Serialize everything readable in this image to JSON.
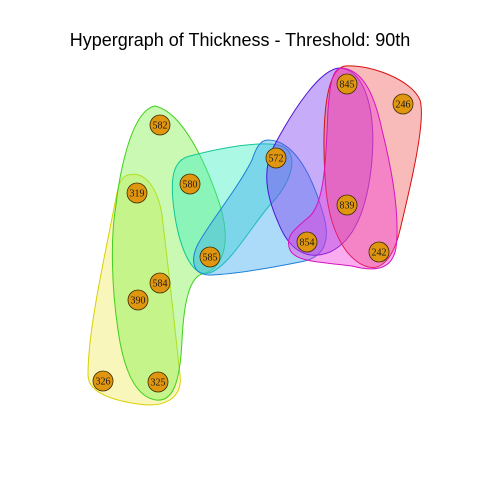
{
  "title": "Hypergraph of Thickness - Threshold: 90th",
  "colors": {
    "node_fill": "#e0960f",
    "node_stroke": "#3a2a00",
    "background": "#ffffff"
  },
  "nodes": [
    {
      "id": "n582",
      "label": "582"
    },
    {
      "id": "n319",
      "label": "319"
    },
    {
      "id": "n580",
      "label": "580"
    },
    {
      "id": "n584",
      "label": "584"
    },
    {
      "id": "n390",
      "label": "390"
    },
    {
      "id": "n585",
      "label": "585"
    },
    {
      "id": "n326",
      "label": "326"
    },
    {
      "id": "n325",
      "label": "325"
    },
    {
      "id": "n572",
      "label": "572"
    },
    {
      "id": "n845",
      "label": "845"
    },
    {
      "id": "n246",
      "label": "246"
    },
    {
      "id": "n839",
      "label": "839"
    },
    {
      "id": "n854",
      "label": "854"
    },
    {
      "id": "n242",
      "label": "242"
    }
  ],
  "hyperedges": [
    {
      "id": "edge-yellow",
      "color": "#f0ea5e",
      "stroke": "#d8d000",
      "members": [
        "319",
        "584",
        "390",
        "326",
        "325"
      ]
    },
    {
      "id": "edge-green",
      "color": "#7ef04a",
      "stroke": "#3fd11a",
      "members": [
        "582",
        "319",
        "584",
        "390",
        "325",
        "585"
      ]
    },
    {
      "id": "edge-teal",
      "color": "#38f0c0",
      "stroke": "#10c895",
      "members": [
        "580",
        "585",
        "572"
      ]
    },
    {
      "id": "edge-blue",
      "color": "#3aa8f0",
      "stroke": "#1d7fd8",
      "members": [
        "585",
        "572",
        "854"
      ]
    },
    {
      "id": "edge-purple",
      "color": "#7a3af0",
      "stroke": "#4b12d8",
      "members": [
        "572",
        "845",
        "839",
        "854"
      ]
    },
    {
      "id": "edge-red",
      "color": "#f05a5a",
      "stroke": "#d81010",
      "members": [
        "845",
        "246",
        "839",
        "242"
      ]
    },
    {
      "id": "edge-magenta",
      "color": "#f03ad8",
      "stroke": "#d812c0",
      "members": [
        "845",
        "839",
        "854",
        "242"
      ]
    }
  ]
}
